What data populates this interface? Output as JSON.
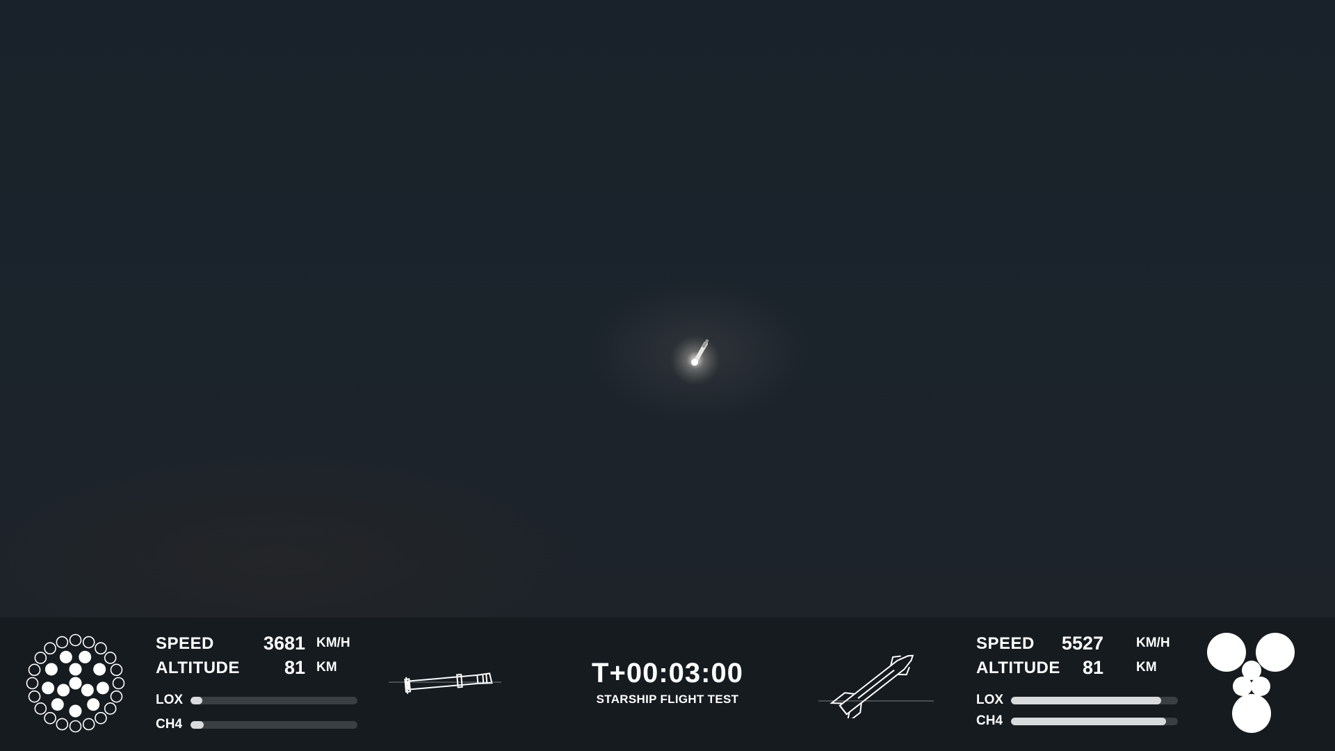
{
  "video": {
    "description_free": true
  },
  "booster": {
    "speed_label": "SPEED",
    "speed_value": "3681",
    "speed_unit": "KM/H",
    "altitude_label": "ALTITUDE",
    "altitude_value": "81",
    "altitude_unit": "KM",
    "lox_label": "LOX",
    "ch4_label": "CH4",
    "lox_level": 0.07,
    "ch4_level": 0.08,
    "engines_outer_ring": 20,
    "engines_active_inner": 13
  },
  "ship": {
    "speed_label": "SPEED",
    "speed_value": "5527",
    "speed_unit": "KM/H",
    "altitude_label": "ALTITUDE",
    "altitude_value": "81",
    "altitude_unit": "KM",
    "lox_label": "LOX",
    "ch4_label": "CH4",
    "lox_level": 0.9,
    "ch4_level": 0.93,
    "engines_active": 6
  },
  "mission": {
    "clock": "T+00:03:00",
    "title": "STARSHIP FLIGHT TEST"
  },
  "icons": {
    "booster_engines": "booster-engine-cluster-icon",
    "booster_attitude": "booster-silhouette-icon",
    "ship_attitude": "ship-silhouette-icon",
    "ship_engines": "ship-engine-cluster-icon"
  },
  "colors": {
    "hud_background": "#161b20",
    "fuel_track": "#3a3f44",
    "fuel_fill": "#d8dadc",
    "text": "#ffffff"
  }
}
